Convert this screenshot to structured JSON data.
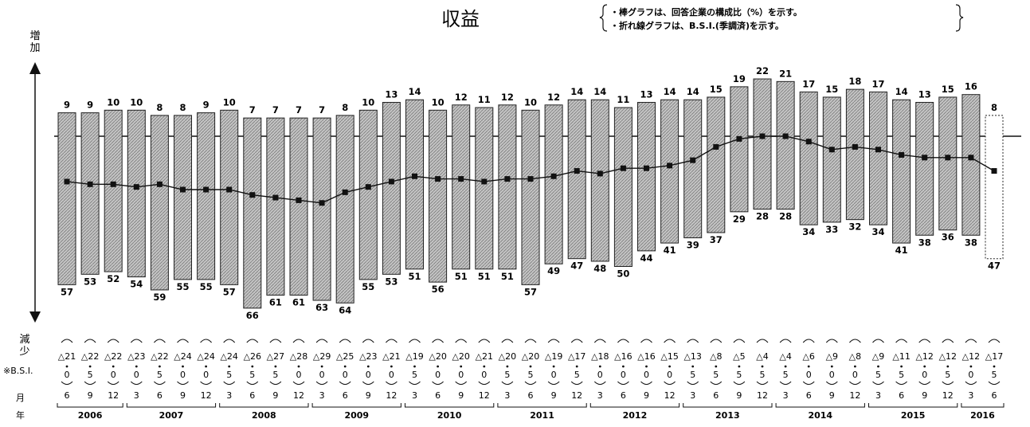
{
  "title": "収益",
  "notes": [
    "・棒グラフは、回答企業の構成比（%）を示す。",
    "・折れ線グラフは、B.S.I.(季調済)を示す。"
  ],
  "axis": {
    "increase_label": [
      "増",
      "加"
    ],
    "decrease_label": [
      "減",
      "少"
    ]
  },
  "row_labels": {
    "bsi": "※B.S.I.",
    "month": "月",
    "year": "年"
  },
  "chart_data": {
    "type": "bar",
    "title": "収益",
    "series": [
      {
        "name": "増加",
        "values": [
          9,
          9,
          10,
          10,
          8,
          8,
          9,
          10,
          7,
          7,
          7,
          7,
          8,
          10,
          13,
          14,
          10,
          12,
          11,
          12,
          10,
          12,
          14,
          14,
          11,
          13,
          14,
          14,
          15,
          19,
          22,
          21,
          17,
          15,
          18,
          17,
          14,
          13,
          15,
          16,
          8
        ]
      },
      {
        "name": "減少",
        "values": [
          57,
          53,
          52,
          54,
          59,
          55,
          55,
          57,
          66,
          61,
          61,
          63,
          64,
          55,
          53,
          51,
          56,
          51,
          51,
          51,
          57,
          49,
          47,
          48,
          50,
          44,
          41,
          39,
          37,
          29,
          28,
          28,
          34,
          33,
          32,
          34,
          41,
          38,
          36,
          38,
          47
        ]
      },
      {
        "name": "B.S.I.",
        "values": [
          -21,
          -22,
          -22,
          -23,
          -22,
          -24,
          -24,
          -24,
          -26,
          -27,
          -28,
          -29,
          -25,
          -23,
          -21,
          -19,
          -20,
          -20,
          -21,
          -20,
          -20,
          -19,
          -17,
          -18,
          -16,
          -16,
          -15,
          -13,
          -8,
          -5,
          -4,
          -4,
          -6,
          -9,
          -8,
          -9,
          -11,
          -12,
          -12,
          -12,
          -17
        ]
      }
    ],
    "bsi_labels": [
      "△21",
      "△22",
      "△22",
      "△23",
      "△22",
      "△24",
      "△24",
      "△24",
      "△26",
      "△27",
      "△28",
      "△29",
      "△25",
      "△23",
      "△21",
      "△19",
      "△20",
      "△20",
      "△21",
      "△20",
      "△20",
      "△19",
      "△17",
      "△18",
      "△16",
      "△16",
      "△15",
      "△13",
      "△8",
      "△5",
      "△4",
      "△4",
      "△6",
      "△9",
      "△8",
      "△9",
      "△11",
      "△12",
      "△12",
      "△12",
      "△17"
    ],
    "bsi_decimals": [
      "0",
      "5",
      "0",
      "0",
      "5",
      "0",
      "0",
      "5",
      "5",
      "5",
      "0",
      "0",
      "0",
      "0",
      "0",
      "5",
      "0",
      "0",
      "0",
      "5",
      "5",
      "0",
      "5",
      "0",
      "0",
      "0",
      "0",
      "5",
      "5",
      "5",
      "5",
      "5",
      "0",
      "0",
      "0",
      "5",
      "5",
      "0",
      "5",
      "0",
      "5"
    ],
    "months": [
      "6",
      "9",
      "12",
      "3",
      "6",
      "9",
      "12",
      "3",
      "6",
      "9",
      "12",
      "3",
      "6",
      "9",
      "12",
      "3",
      "6",
      "9",
      "12",
      "3",
      "6",
      "9",
      "12",
      "3",
      "6",
      "9",
      "12",
      "3",
      "6",
      "9",
      "12",
      "3",
      "6",
      "9",
      "12",
      "3",
      "6",
      "9",
      "12",
      "3",
      "6"
    ],
    "years": [
      {
        "label": "2006",
        "start": 0,
        "end": 2
      },
      {
        "label": "2007",
        "start": 3,
        "end": 6
      },
      {
        "label": "2008",
        "start": 7,
        "end": 10
      },
      {
        "label": "2009",
        "start": 11,
        "end": 14
      },
      {
        "label": "2010",
        "start": 15,
        "end": 18
      },
      {
        "label": "2011",
        "start": 19,
        "end": 22
      },
      {
        "label": "2012",
        "start": 23,
        "end": 26
      },
      {
        "label": "2013",
        "start": 27,
        "end": 30
      },
      {
        "label": "2014",
        "start": 31,
        "end": 34
      },
      {
        "label": "2015",
        "start": 35,
        "end": 38
      },
      {
        "label": "2016",
        "start": 39,
        "end": 40
      }
    ],
    "forecast_index": 40,
    "colors": {
      "bar_fill": "#b8b8b8",
      "bar_stroke": "#222222",
      "line": "#111111"
    }
  }
}
